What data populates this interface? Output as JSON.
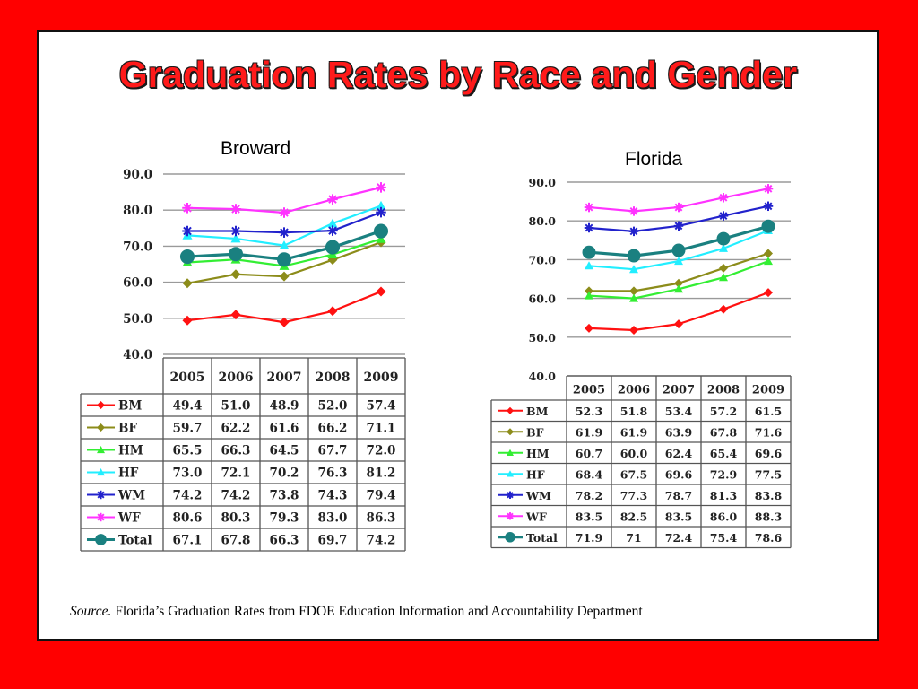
{
  "slide": {
    "title": "Graduation Rates by Race and Gender",
    "source_prefix": "Source.",
    "source_text": " Florida’s Graduation Rates from FDOE Education Information and Accountability Department"
  },
  "chart_data": [
    {
      "type": "line",
      "title": "Broward",
      "categories": [
        "2005",
        "2006",
        "2007",
        "2008",
        "2009"
      ],
      "y_ticks": [
        "90.0",
        "80.0",
        "70.0",
        "60.0",
        "50.0",
        "40.0"
      ],
      "ylim": [
        40,
        90
      ],
      "grid": true,
      "legend": "table-below",
      "series": [
        {
          "name": "BM",
          "color": "#ff1111",
          "marker": "diamond",
          "values": [
            49.4,
            51.0,
            48.9,
            52.0,
            57.4
          ]
        },
        {
          "name": "BF",
          "color": "#8c8c1a",
          "marker": "diamond",
          "values": [
            59.7,
            62.2,
            61.6,
            66.2,
            71.1
          ]
        },
        {
          "name": "HM",
          "color": "#33ee33",
          "marker": "triangle",
          "values": [
            65.5,
            66.3,
            64.5,
            67.7,
            72.0
          ]
        },
        {
          "name": "HF",
          "color": "#22eeff",
          "marker": "triangle",
          "values": [
            73.0,
            72.1,
            70.2,
            76.3,
            81.2
          ]
        },
        {
          "name": "WM",
          "color": "#2222cc",
          "marker": "asterisk",
          "values": [
            74.2,
            74.2,
            73.8,
            74.3,
            79.4
          ]
        },
        {
          "name": "WF",
          "color": "#ff33ff",
          "marker": "asterisk",
          "values": [
            80.6,
            80.3,
            79.3,
            83.0,
            86.3
          ]
        },
        {
          "name": "Total",
          "color": "#1a8080",
          "marker": "circle",
          "values": [
            67.1,
            67.8,
            66.3,
            69.7,
            74.2
          ]
        }
      ],
      "table_text": [
        [
          "49.4",
          "51.0",
          "48.9",
          "52.0",
          "57.4"
        ],
        [
          "59.7",
          "62.2",
          "61.6",
          "66.2",
          "71.1"
        ],
        [
          "65.5",
          "66.3",
          "64.5",
          "67.7",
          "72.0"
        ],
        [
          "73.0",
          "72.1",
          "70.2",
          "76.3",
          "81.2"
        ],
        [
          "74.2",
          "74.2",
          "73.8",
          "74.3",
          "79.4"
        ],
        [
          "80.6",
          "80.3",
          "79.3",
          "83.0",
          "86.3"
        ],
        [
          "67.1",
          "67.8",
          "66.3",
          "69.7",
          "74.2"
        ]
      ]
    },
    {
      "type": "line",
      "title": "Florida",
      "categories": [
        "2005",
        "2006",
        "2007",
        "2008",
        "2009"
      ],
      "y_ticks": [
        "90.0",
        "80.0",
        "70.0",
        "60.0",
        "50.0",
        "40.0"
      ],
      "ylim": [
        40,
        90
      ],
      "grid": true,
      "legend": "table-below",
      "series": [
        {
          "name": "BM",
          "color": "#ff1111",
          "marker": "diamond",
          "values": [
            52.3,
            51.8,
            53.4,
            57.2,
            61.5
          ]
        },
        {
          "name": "BF",
          "color": "#8c8c1a",
          "marker": "diamond",
          "values": [
            61.9,
            61.9,
            63.9,
            67.8,
            71.6
          ]
        },
        {
          "name": "HM",
          "color": "#33ee33",
          "marker": "triangle",
          "values": [
            60.7,
            60.0,
            62.4,
            65.4,
            69.6
          ]
        },
        {
          "name": "HF",
          "color": "#22eeff",
          "marker": "triangle",
          "values": [
            68.4,
            67.5,
            69.6,
            72.9,
            77.5
          ]
        },
        {
          "name": "WM",
          "color": "#2222cc",
          "marker": "asterisk",
          "values": [
            78.2,
            77.3,
            78.7,
            81.3,
            83.8
          ]
        },
        {
          "name": "WF",
          "color": "#ff33ff",
          "marker": "asterisk",
          "values": [
            83.5,
            82.5,
            83.5,
            86.0,
            88.3
          ]
        },
        {
          "name": "Total",
          "color": "#1a8080",
          "marker": "circle",
          "values": [
            71.9,
            71.0,
            72.4,
            75.4,
            78.6
          ]
        }
      ],
      "table_text": [
        [
          "52.3",
          "51.8",
          "53.4",
          "57.2",
          "61.5"
        ],
        [
          "61.9",
          "61.9",
          "63.9",
          "67.8",
          "71.6"
        ],
        [
          "60.7",
          "60.0",
          "62.4",
          "65.4",
          "69.6"
        ],
        [
          "68.4",
          "67.5",
          "69.6",
          "72.9",
          "77.5"
        ],
        [
          "78.2",
          "77.3",
          "78.7",
          "81.3",
          "83.8"
        ],
        [
          "83.5",
          "82.5",
          "83.5",
          "86.0",
          "88.3"
        ],
        [
          "71.9",
          "71",
          "72.4",
          "75.4",
          "78.6"
        ]
      ]
    }
  ]
}
